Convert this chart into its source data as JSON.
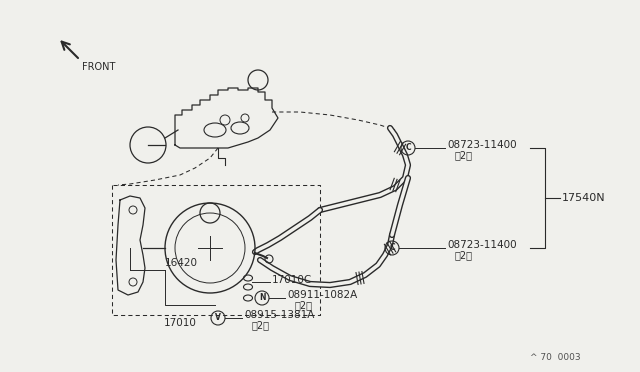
{
  "bg_color": "#f0f0ec",
  "line_color": "#2a2a2a",
  "text_color": "#2a2a2a",
  "labels": {
    "front": "FRONT",
    "part_16420": "16420",
    "part_17010": "17010",
    "part_17010C": "17010C",
    "part_17540N": "17540N",
    "part_08723_upper": "08723-11400",
    "part_08723_upper_qty": "（2）",
    "part_08723_lower": "08723-11400",
    "part_08723_lower_qty": "（2）",
    "part_08911": "08911-1082A",
    "part_08911_qty": "（2）",
    "part_08915": "08915-1381A",
    "part_08915_qty": "（2）",
    "watermark": "^ 70  0003"
  },
  "sym_C": "C",
  "sym_N": "N",
  "sym_V": "V"
}
